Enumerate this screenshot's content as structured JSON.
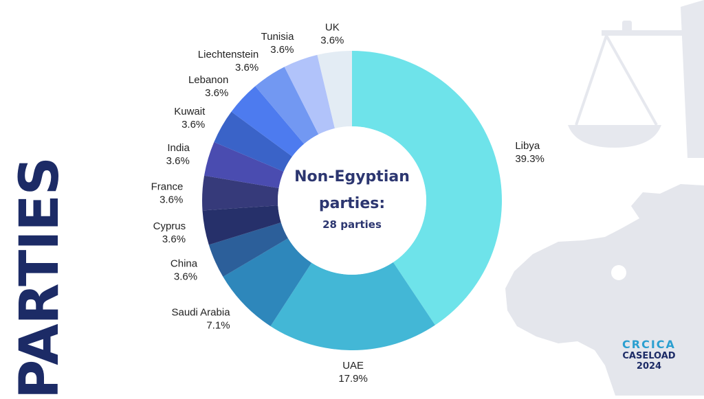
{
  "page": {
    "vertical_title": "PARTIES"
  },
  "branding": {
    "org": "CRCICA",
    "line2": "CASELOAD",
    "year": "2024"
  },
  "center": {
    "title_line1": "Non-Egyptian",
    "title_line2": "parties:",
    "subtitle": "28 parties"
  },
  "decor_icons": [
    "scales-of-justice-icon",
    "africa-map-icon"
  ],
  "chart_data": {
    "type": "pie",
    "donut": true,
    "legend": "none",
    "title": "",
    "slices": [
      {
        "label": "Libya",
        "value": 39.3,
        "display": "39.3%",
        "color": "#6ee3ea"
      },
      {
        "label": "UAE",
        "value": 17.9,
        "display": "17.9%",
        "color": "#43b7d6"
      },
      {
        "label": "Saudi Arabia",
        "value": 7.1,
        "display": "7.1%",
        "color": "#2e87bb"
      },
      {
        "label": "China",
        "value": 3.6,
        "display": "3.6%",
        "color": "#2c5f9a"
      },
      {
        "label": "Cyprus",
        "value": 3.6,
        "display": "3.6%",
        "color": "#26306a"
      },
      {
        "label": "France",
        "value": 3.6,
        "display": "3.6%",
        "color": "#363a7a"
      },
      {
        "label": "India",
        "value": 3.6,
        "display": "3.6%",
        "color": "#4a4cb0"
      },
      {
        "label": "Kuwait",
        "value": 3.6,
        "display": "3.6%",
        "color": "#3a63c8"
      },
      {
        "label": "Lebanon",
        "value": 3.6,
        "display": "3.6%",
        "color": "#4d7bef"
      },
      {
        "label": "Liechtenstein",
        "value": 3.6,
        "display": "3.6%",
        "color": "#7298f2"
      },
      {
        "label": "Tunisia",
        "value": 3.6,
        "display": "3.6%",
        "color": "#b1c3fa"
      },
      {
        "label": "UK",
        "value": 3.6,
        "display": "3.6%",
        "color": "#e3ecf4"
      }
    ]
  }
}
